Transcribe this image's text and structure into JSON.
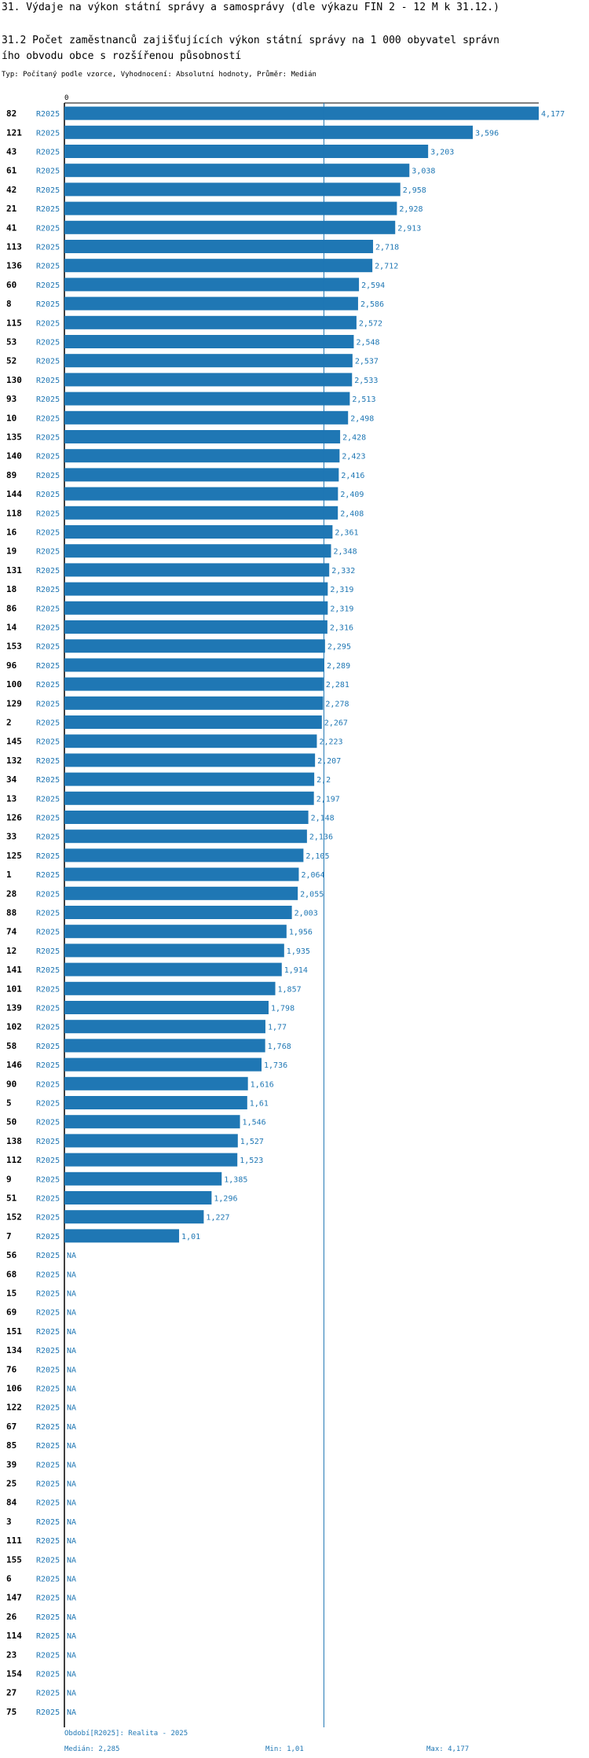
{
  "page": {
    "title": "31. Výdaje na výkon státní správy a samosprávy (dle výkazu FIN 2 - 12 M k 31.12.)",
    "subtitle_line1": "31.2 Počet zaměstnanců zajišťujících výkon státní správy na 1 000 obyvatel správn",
    "subtitle_line2": "ího obvodu obce s rozšířenou působností",
    "type_line": "Typ: Počítaný podle vzorce, Vyhodnocení: Absolutní hodnoty, Průměr: Medián"
  },
  "footer": {
    "period": "Období[R2025]: Realita - 2025",
    "median": "Medián: 2,285",
    "min": "Min: 1,01",
    "max": "Max: 4,177"
  },
  "colors": {
    "bar": "#1f77b4",
    "median_line": "#1f77b4",
    "text": "#000000",
    "accent": "#1f77b4"
  },
  "chart_data": {
    "type": "bar",
    "orientation": "horizontal",
    "axis_zero_label": "0",
    "xlim": [
      0,
      4.177
    ],
    "median": 2.285,
    "series_label": "R2025",
    "na_label": "NA",
    "rows": [
      {
        "id": "82",
        "value": 4.177,
        "label": "4,177"
      },
      {
        "id": "121",
        "value": 3.596,
        "label": "3,596"
      },
      {
        "id": "43",
        "value": 3.203,
        "label": "3,203"
      },
      {
        "id": "61",
        "value": 3.038,
        "label": "3,038"
      },
      {
        "id": "42",
        "value": 2.958,
        "label": "2,958"
      },
      {
        "id": "21",
        "value": 2.928,
        "label": "2,928"
      },
      {
        "id": "41",
        "value": 2.913,
        "label": "2,913"
      },
      {
        "id": "113",
        "value": 2.718,
        "label": "2,718"
      },
      {
        "id": "136",
        "value": 2.712,
        "label": "2,712"
      },
      {
        "id": "60",
        "value": 2.594,
        "label": "2,594"
      },
      {
        "id": "8",
        "value": 2.586,
        "label": "2,586"
      },
      {
        "id": "115",
        "value": 2.572,
        "label": "2,572"
      },
      {
        "id": "53",
        "value": 2.548,
        "label": "2,548"
      },
      {
        "id": "52",
        "value": 2.537,
        "label": "2,537"
      },
      {
        "id": "130",
        "value": 2.533,
        "label": "2,533"
      },
      {
        "id": "93",
        "value": 2.513,
        "label": "2,513"
      },
      {
        "id": "10",
        "value": 2.498,
        "label": "2,498"
      },
      {
        "id": "135",
        "value": 2.428,
        "label": "2,428"
      },
      {
        "id": "140",
        "value": 2.423,
        "label": "2,423"
      },
      {
        "id": "89",
        "value": 2.416,
        "label": "2,416"
      },
      {
        "id": "144",
        "value": 2.409,
        "label": "2,409"
      },
      {
        "id": "118",
        "value": 2.408,
        "label": "2,408"
      },
      {
        "id": "16",
        "value": 2.361,
        "label": "2,361"
      },
      {
        "id": "19",
        "value": 2.348,
        "label": "2,348"
      },
      {
        "id": "131",
        "value": 2.332,
        "label": "2,332"
      },
      {
        "id": "18",
        "value": 2.319,
        "label": "2,319"
      },
      {
        "id": "86",
        "value": 2.319,
        "label": "2,319"
      },
      {
        "id": "14",
        "value": 2.316,
        "label": "2,316"
      },
      {
        "id": "153",
        "value": 2.295,
        "label": "2,295"
      },
      {
        "id": "96",
        "value": 2.289,
        "label": "2,289"
      },
      {
        "id": "100",
        "value": 2.281,
        "label": "2,281"
      },
      {
        "id": "129",
        "value": 2.278,
        "label": "2,278"
      },
      {
        "id": "2",
        "value": 2.267,
        "label": "2,267"
      },
      {
        "id": "145",
        "value": 2.223,
        "label": "2,223"
      },
      {
        "id": "132",
        "value": 2.207,
        "label": "2,207"
      },
      {
        "id": "34",
        "value": 2.2,
        "label": "2,2"
      },
      {
        "id": "13",
        "value": 2.197,
        "label": "2,197"
      },
      {
        "id": "126",
        "value": 2.148,
        "label": "2,148"
      },
      {
        "id": "33",
        "value": 2.136,
        "label": "2,136"
      },
      {
        "id": "125",
        "value": 2.105,
        "label": "2,105"
      },
      {
        "id": "1",
        "value": 2.064,
        "label": "2,064"
      },
      {
        "id": "28",
        "value": 2.055,
        "label": "2,055"
      },
      {
        "id": "88",
        "value": 2.003,
        "label": "2,003"
      },
      {
        "id": "74",
        "value": 1.956,
        "label": "1,956"
      },
      {
        "id": "12",
        "value": 1.935,
        "label": "1,935"
      },
      {
        "id": "141",
        "value": 1.914,
        "label": "1,914"
      },
      {
        "id": "101",
        "value": 1.857,
        "label": "1,857"
      },
      {
        "id": "139",
        "value": 1.798,
        "label": "1,798"
      },
      {
        "id": "102",
        "value": 1.77,
        "label": "1,77"
      },
      {
        "id": "58",
        "value": 1.768,
        "label": "1,768"
      },
      {
        "id": "146",
        "value": 1.736,
        "label": "1,736"
      },
      {
        "id": "90",
        "value": 1.616,
        "label": "1,616"
      },
      {
        "id": "5",
        "value": 1.61,
        "label": "1,61"
      },
      {
        "id": "50",
        "value": 1.546,
        "label": "1,546"
      },
      {
        "id": "138",
        "value": 1.527,
        "label": "1,527"
      },
      {
        "id": "112",
        "value": 1.523,
        "label": "1,523"
      },
      {
        "id": "9",
        "value": 1.385,
        "label": "1,385"
      },
      {
        "id": "51",
        "value": 1.296,
        "label": "1,296"
      },
      {
        "id": "152",
        "value": 1.227,
        "label": "1,227"
      },
      {
        "id": "7",
        "value": 1.01,
        "label": "1,01"
      },
      {
        "id": "56",
        "value": null,
        "label": "NA"
      },
      {
        "id": "68",
        "value": null,
        "label": "NA"
      },
      {
        "id": "15",
        "value": null,
        "label": "NA"
      },
      {
        "id": "69",
        "value": null,
        "label": "NA"
      },
      {
        "id": "151",
        "value": null,
        "label": "NA"
      },
      {
        "id": "134",
        "value": null,
        "label": "NA"
      },
      {
        "id": "76",
        "value": null,
        "label": "NA"
      },
      {
        "id": "106",
        "value": null,
        "label": "NA"
      },
      {
        "id": "122",
        "value": null,
        "label": "NA"
      },
      {
        "id": "67",
        "value": null,
        "label": "NA"
      },
      {
        "id": "85",
        "value": null,
        "label": "NA"
      },
      {
        "id": "39",
        "value": null,
        "label": "NA"
      },
      {
        "id": "25",
        "value": null,
        "label": "NA"
      },
      {
        "id": "84",
        "value": null,
        "label": "NA"
      },
      {
        "id": "3",
        "value": null,
        "label": "NA"
      },
      {
        "id": "111",
        "value": null,
        "label": "NA"
      },
      {
        "id": "155",
        "value": null,
        "label": "NA"
      },
      {
        "id": "6",
        "value": null,
        "label": "NA"
      },
      {
        "id": "147",
        "value": null,
        "label": "NA"
      },
      {
        "id": "26",
        "value": null,
        "label": "NA"
      },
      {
        "id": "114",
        "value": null,
        "label": "NA"
      },
      {
        "id": "23",
        "value": null,
        "label": "NA"
      },
      {
        "id": "154",
        "value": null,
        "label": "NA"
      },
      {
        "id": "27",
        "value": null,
        "label": "NA"
      },
      {
        "id": "75",
        "value": null,
        "label": "NA"
      }
    ]
  }
}
